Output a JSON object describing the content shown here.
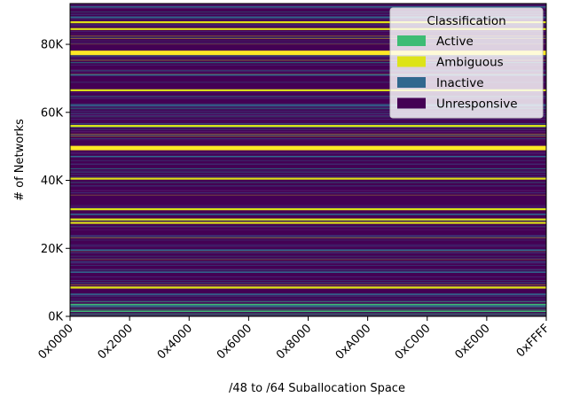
{
  "chart_data": {
    "type": "heatmap",
    "xlabel": "/48 to /64 Suballocation Space",
    "ylabel": "# of Networks",
    "x_ticks": [
      "0x0000",
      "0x2000",
      "0x4000",
      "0x6000",
      "0x8000",
      "0xA000",
      "0xC000",
      "0xE000",
      "0xFFFF"
    ],
    "y_ticks": [
      {
        "value": 0,
        "label": "0K"
      },
      {
        "value": 20000,
        "label": "20K"
      },
      {
        "value": 40000,
        "label": "40K"
      },
      {
        "value": 60000,
        "label": "60K"
      },
      {
        "value": 80000,
        "label": "80K"
      }
    ],
    "xlim": [
      0,
      65535
    ],
    "ylim": [
      0,
      92000
    ],
    "legend": {
      "title": "Classification",
      "position": "top-right",
      "entries": [
        {
          "label": "Active",
          "color": "#3dbc74"
        },
        {
          "label": "Ambiguous",
          "color": "#dde318"
        },
        {
          "label": "Inactive",
          "color": "#31688e"
        },
        {
          "label": "Unresponsive",
          "color": "#440154"
        }
      ]
    },
    "background_color": "#440154",
    "notable_bands": [
      {
        "y": 77500,
        "class": "Ambiguous"
      },
      {
        "y": 49500,
        "class": "Ambiguous"
      },
      {
        "y": 84500,
        "class": "Ambiguous"
      },
      {
        "y": 56000,
        "class": "Ambiguous"
      },
      {
        "y": 91000,
        "class": "Inactive"
      },
      {
        "y": 86500,
        "class": "Ambiguous"
      },
      {
        "y": 66500,
        "class": "Ambiguous"
      },
      {
        "y": 40500,
        "class": "Ambiguous"
      },
      {
        "y": 31500,
        "class": "Ambiguous"
      },
      {
        "y": 28500,
        "class": "Ambiguous"
      },
      {
        "y": 27500,
        "class": "Ambiguous"
      },
      {
        "y": 8500,
        "class": "Ambiguous"
      },
      {
        "y": 3500,
        "class": "Active"
      },
      {
        "y": 1500,
        "class": "Active"
      },
      {
        "y": 3000,
        "class": "Inactive"
      },
      {
        "y": 6500,
        "class": "Inactive"
      },
      {
        "y": 13000,
        "class": "Inactive"
      },
      {
        "y": 19500,
        "class": "Inactive"
      },
      {
        "y": 30000,
        "class": "Inactive"
      },
      {
        "y": 47000,
        "class": "Inactive"
      },
      {
        "y": 62000,
        "class": "Inactive"
      },
      {
        "y": 71000,
        "class": "Inactive"
      },
      {
        "y": 88000,
        "class": "Inactive"
      }
    ]
  }
}
